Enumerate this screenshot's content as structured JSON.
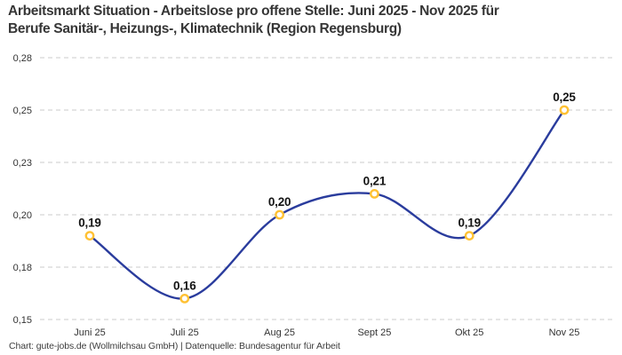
{
  "title_lines": [
    "Arbeitsmarkt Situation - Arbeitslose pro offene Stelle: Juni 2025 - Nov 2025 für",
    "Berufe Sanitär-, Heizungs-, Klimatechnik (Region Regensburg)"
  ],
  "footer": "Chart: gute-jobs.de (Wollmilchsau GmbH) | Datenquelle: Bundesagentur für Arbeit",
  "chart_data": {
    "type": "line",
    "title": "Arbeitsmarkt Situation - Arbeitslose pro offene Stelle: Juni 2025 - Nov 2025 für Berufe Sanitär-, Heizungs-, Klimatechnik (Region Regensburg)",
    "categories": [
      "Juni 25",
      "Juli 25",
      "Aug 25",
      "Sept 25",
      "Okt 25",
      "Nov 25"
    ],
    "values": [
      0.19,
      0.16,
      0.2,
      0.21,
      0.19,
      0.25
    ],
    "value_labels": [
      "0,19",
      "0,16",
      "0,20",
      "0,21",
      "0,19",
      "0,25"
    ],
    "xlabel": "",
    "ylabel": "",
    "ylim": [
      0.15,
      0.275
    ],
    "ytick_values": [
      0.275,
      0.25,
      0.225,
      0.2,
      0.175,
      0.15
    ],
    "ytick_labels": [
      "0,28",
      "0,25",
      "0,23",
      "0,20",
      "0,18",
      "0,15"
    ],
    "grid": "horizontal-dashed",
    "legend": "none",
    "smooth": true,
    "line_color": "#2A3C9D",
    "marker_stroke_color": "#FFC133",
    "marker_fill_color": "#FFFFFF",
    "gridline_color": "#CBCBCB",
    "background_color": "#FFFFFF"
  }
}
